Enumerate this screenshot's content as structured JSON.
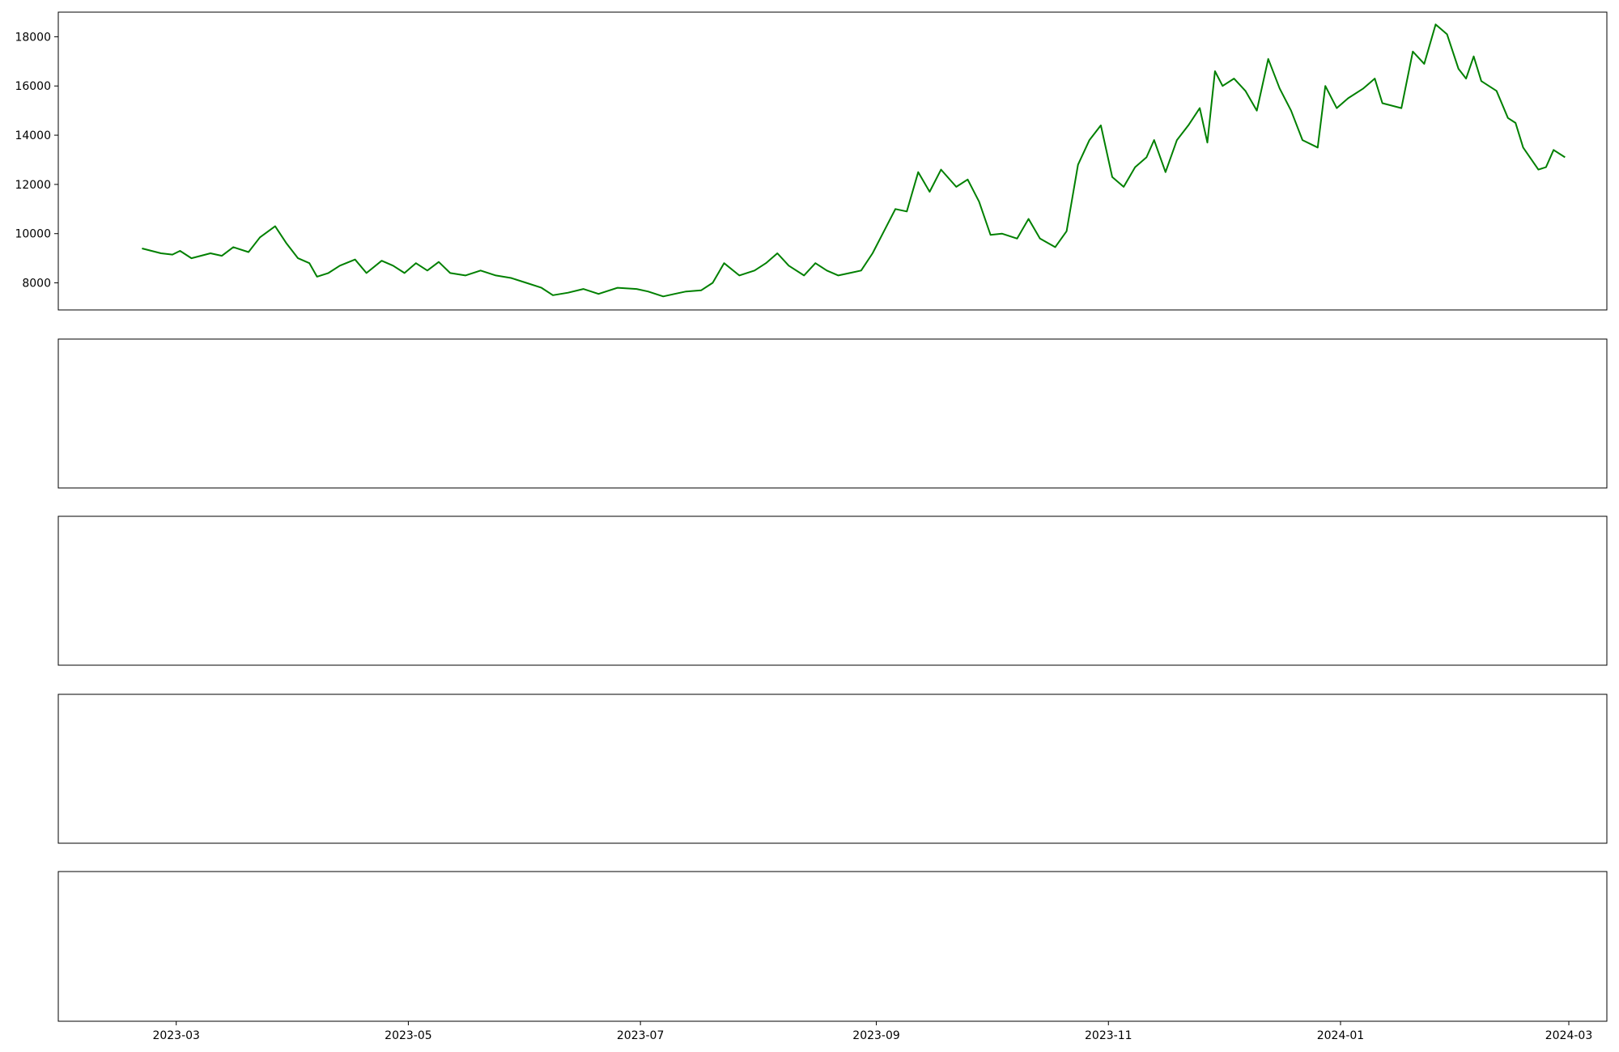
{
  "chart_data": {
    "type": "line",
    "x_ticks": [
      "2023-03",
      "2023-05",
      "2023-07",
      "2023-09",
      "2023-11",
      "2024-01",
      "2024-03"
    ],
    "x_range": [
      "2023-01-29",
      "2024-03-11"
    ],
    "panels": [
      {
        "id": "price",
        "type": "line",
        "ylim": [
          6900,
          19000
        ],
        "y_ticks": [
          8000,
          10000,
          12000,
          14000,
          16000,
          18000
        ],
        "series": [
          {
            "color": "#008000",
            "points": [
              [
                "2023-02-20",
                9400
              ],
              [
                "2023-02-25",
                9200
              ],
              [
                "2023-02-28",
                9150
              ],
              [
                "2023-03-02",
                9300
              ],
              [
                "2023-03-05",
                9000
              ],
              [
                "2023-03-10",
                9200
              ],
              [
                "2023-03-13",
                9100
              ],
              [
                "2023-03-16",
                9450
              ],
              [
                "2023-03-20",
                9250
              ],
              [
                "2023-03-23",
                9850
              ],
              [
                "2023-03-27",
                10300
              ],
              [
                "2023-03-30",
                9600
              ],
              [
                "2023-04-02",
                9000
              ],
              [
                "2023-04-05",
                8800
              ],
              [
                "2023-04-07",
                8250
              ],
              [
                "2023-04-10",
                8400
              ],
              [
                "2023-04-13",
                8700
              ],
              [
                "2023-04-17",
                8950
              ],
              [
                "2023-04-20",
                8400
              ],
              [
                "2023-04-24",
                8900
              ],
              [
                "2023-04-27",
                8700
              ],
              [
                "2023-04-30",
                8400
              ],
              [
                "2023-05-03",
                8800
              ],
              [
                "2023-05-06",
                8500
              ],
              [
                "2023-05-09",
                8850
              ],
              [
                "2023-05-12",
                8400
              ],
              [
                "2023-05-16",
                8300
              ],
              [
                "2023-05-20",
                8500
              ],
              [
                "2023-05-24",
                8300
              ],
              [
                "2023-05-28",
                8200
              ],
              [
                "2023-06-01",
                8000
              ],
              [
                "2023-06-05",
                7800
              ],
              [
                "2023-06-08",
                7500
              ],
              [
                "2023-06-12",
                7600
              ],
              [
                "2023-06-16",
                7750
              ],
              [
                "2023-06-20",
                7550
              ],
              [
                "2023-06-25",
                7800
              ],
              [
                "2023-06-30",
                7750
              ],
              [
                "2023-07-03",
                7650
              ],
              [
                "2023-07-07",
                7450
              ],
              [
                "2023-07-10",
                7550
              ],
              [
                "2023-07-13",
                7650
              ],
              [
                "2023-07-17",
                7700
              ],
              [
                "2023-07-20",
                8000
              ],
              [
                "2023-07-23",
                8800
              ],
              [
                "2023-07-27",
                8300
              ],
              [
                "2023-07-31",
                8500
              ],
              [
                "2023-08-03",
                8800
              ],
              [
                "2023-08-06",
                9200
              ],
              [
                "2023-08-09",
                8700
              ],
              [
                "2023-08-13",
                8300
              ],
              [
                "2023-08-16",
                8800
              ],
              [
                "2023-08-19",
                8500
              ],
              [
                "2023-08-22",
                8300
              ],
              [
                "2023-08-25",
                8400
              ],
              [
                "2023-08-28",
                8500
              ],
              [
                "2023-08-31",
                9200
              ],
              [
                "2023-09-03",
                10100
              ],
              [
                "2023-09-06",
                11000
              ],
              [
                "2023-09-09",
                10900
              ],
              [
                "2023-09-12",
                12500
              ],
              [
                "2023-09-15",
                11700
              ],
              [
                "2023-09-18",
                12600
              ],
              [
                "2023-09-22",
                11900
              ],
              [
                "2023-09-25",
                12200
              ],
              [
                "2023-09-28",
                11300
              ],
              [
                "2023-10-01",
                9950
              ],
              [
                "2023-10-04",
                10000
              ],
              [
                "2023-10-08",
                9800
              ],
              [
                "2023-10-11",
                10600
              ],
              [
                "2023-10-14",
                9800
              ],
              [
                "2023-10-18",
                9450
              ],
              [
                "2023-10-21",
                10100
              ],
              [
                "2023-10-24",
                12800
              ],
              [
                "2023-10-27",
                13800
              ],
              [
                "2023-10-30",
                14400
              ],
              [
                "2023-11-02",
                12300
              ],
              [
                "2023-11-05",
                11900
              ],
              [
                "2023-11-08",
                12700
              ],
              [
                "2023-11-11",
                13100
              ],
              [
                "2023-11-13",
                13800
              ],
              [
                "2023-11-16",
                12500
              ],
              [
                "2023-11-19",
                13800
              ],
              [
                "2023-11-22",
                14400
              ],
              [
                "2023-11-25",
                15100
              ],
              [
                "2023-11-27",
                13700
              ],
              [
                "2023-11-29",
                16600
              ],
              [
                "2023-12-01",
                16000
              ],
              [
                "2023-12-04",
                16300
              ],
              [
                "2023-12-07",
                15800
              ],
              [
                "2023-12-10",
                15000
              ],
              [
                "2023-12-13",
                17100
              ],
              [
                "2023-12-16",
                15900
              ],
              [
                "2023-12-19",
                15000
              ],
              [
                "2023-12-22",
                13800
              ],
              [
                "2023-12-26",
                13500
              ],
              [
                "2023-12-28",
                16000
              ],
              [
                "2023-12-31",
                15100
              ],
              [
                "2024-01-03",
                15500
              ],
              [
                "2024-01-07",
                15900
              ],
              [
                "2024-01-10",
                16300
              ],
              [
                "2024-01-12",
                15300
              ],
              [
                "2024-01-17",
                15100
              ],
              [
                "2024-01-20",
                17400
              ],
              [
                "2024-01-23",
                16900
              ],
              [
                "2024-01-26",
                18500
              ],
              [
                "2024-01-29",
                18100
              ],
              [
                "2024-02-01",
                16700
              ],
              [
                "2024-02-03",
                16300
              ],
              [
                "2024-02-05",
                17200
              ],
              [
                "2024-02-07",
                16200
              ],
              [
                "2024-02-11",
                15800
              ],
              [
                "2024-02-14",
                14700
              ],
              [
                "2024-02-16",
                14500
              ],
              [
                "2024-02-18",
                13500
              ],
              [
                "2024-02-22",
                12600
              ],
              [
                "2024-02-24",
                12700
              ],
              [
                "2024-02-26",
                13400
              ],
              [
                "2024-02-29",
                13100
              ]
            ]
          }
        ]
      }
    ]
  }
}
